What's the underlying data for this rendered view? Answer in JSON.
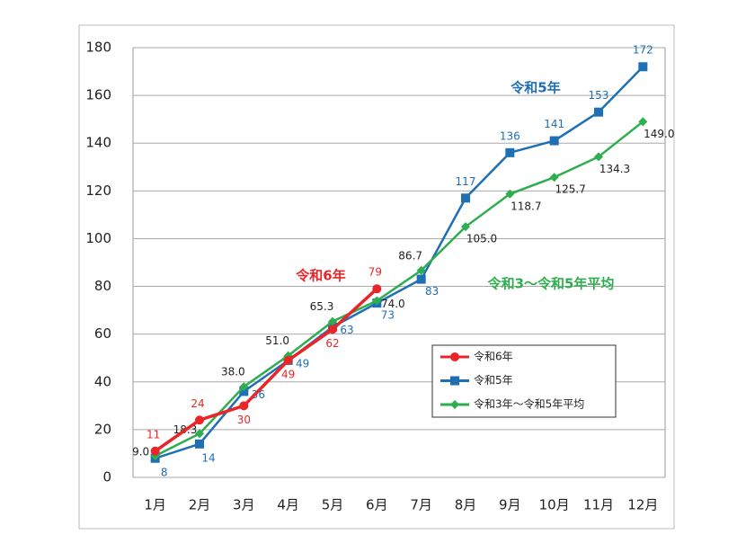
{
  "chart_data": {
    "type": "line",
    "categories": [
      "1月",
      "2月",
      "3月",
      "4月",
      "5月",
      "6月",
      "7月",
      "8月",
      "9月",
      "10月",
      "11月",
      "12月"
    ],
    "series": [
      {
        "name": "令和6年",
        "color": "#e8262a",
        "marker": "circle",
        "values": [
          11,
          24,
          30,
          49,
          62,
          79,
          null,
          null,
          null,
          null,
          null,
          null
        ]
      },
      {
        "name": "令和5年",
        "color": "#1f6fb5",
        "marker": "square",
        "values": [
          8,
          14,
          36,
          49,
          63,
          73,
          83,
          117,
          136,
          141,
          153,
          172
        ]
      },
      {
        "name": "令和3年～令和5年平均",
        "color": "#2eae4e",
        "marker": "diamond",
        "values": [
          9,
          18.3,
          38,
          51,
          65.3,
          74,
          86.7,
          105,
          118.7,
          125.7,
          134.3,
          149
        ],
        "value_labels": [
          "9.0",
          "18.3",
          "38.0",
          "51.0",
          "65.3",
          "74.0",
          "86.7",
          "105.0",
          "118.7",
          "125.7",
          "134.3",
          "149.0"
        ]
      }
    ],
    "annotations": [
      "令和6年",
      "令和5年",
      "令和3～令和5年平均"
    ],
    "ylim": [
      0,
      180
    ],
    "yticks": [
      0,
      20,
      40,
      60,
      80,
      100,
      120,
      140,
      160,
      180
    ],
    "grid": true,
    "legend": "lower right"
  }
}
